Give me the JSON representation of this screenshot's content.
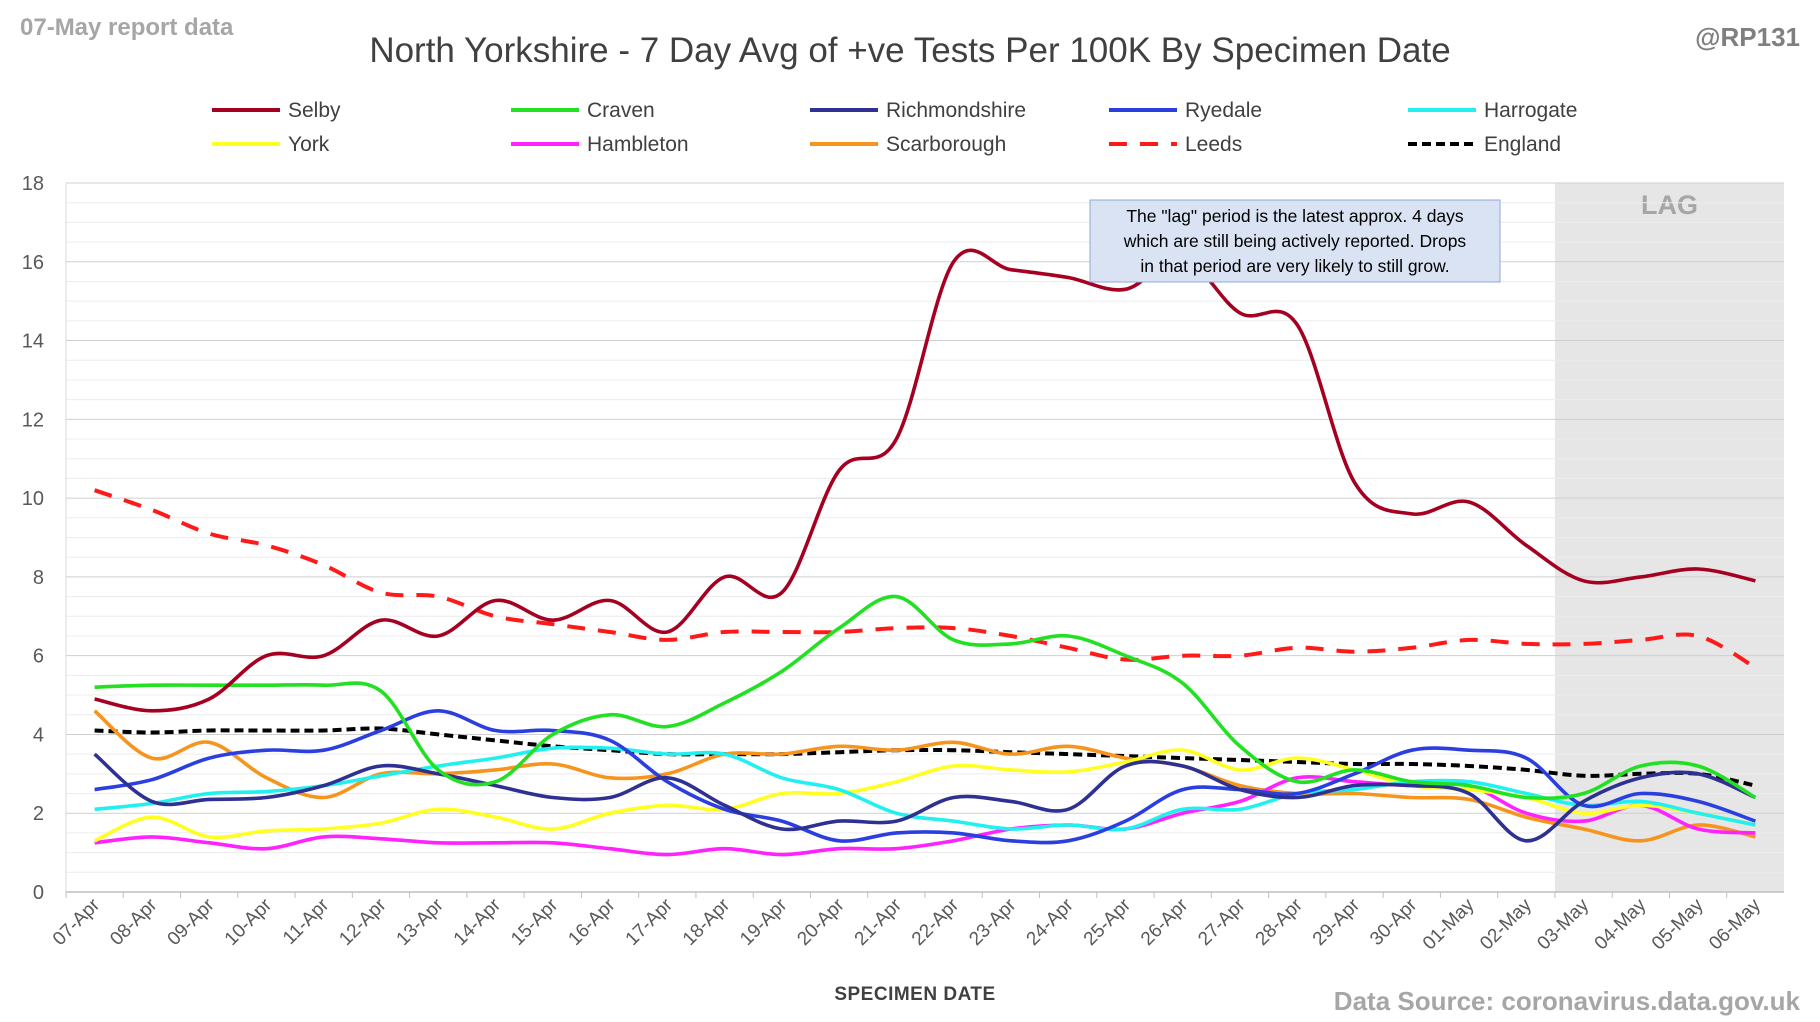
{
  "header": {
    "report_date": "07-May report data",
    "author": "@RP131",
    "source": "Data Source: coronavirus.data.gov.uk"
  },
  "chart_data": {
    "type": "line",
    "title": "North Yorkshire - 7 Day Avg of +ve Tests Per 100K By Specimen Date",
    "xlabel": "SPECIMEN DATE",
    "ylabel": "",
    "ylim": [
      0,
      18
    ],
    "yticks": [
      0,
      2,
      4,
      6,
      8,
      10,
      12,
      14,
      16,
      18
    ],
    "grid": "horizontal",
    "legend_position": "top",
    "x": [
      "07-Apr",
      "08-Apr",
      "09-Apr",
      "10-Apr",
      "11-Apr",
      "12-Apr",
      "13-Apr",
      "14-Apr",
      "15-Apr",
      "16-Apr",
      "17-Apr",
      "18-Apr",
      "19-Apr",
      "20-Apr",
      "21-Apr",
      "22-Apr",
      "23-Apr",
      "24-Apr",
      "25-Apr",
      "26-Apr",
      "27-Apr",
      "28-Apr",
      "29-Apr",
      "30-Apr",
      "01-May",
      "02-May",
      "03-May",
      "04-May",
      "05-May",
      "06-May"
    ],
    "lag_region": {
      "label": "LAG",
      "from": "03-May",
      "to": "06-May"
    },
    "annotation": {
      "lines": [
        "The \"lag\" period is the latest approx. 4 days",
        "which are still being actively reported.  Drops",
        "in that period are very likely to still grow."
      ]
    },
    "series": [
      {
        "name": "Selby",
        "color": "#a50021",
        "dash": false,
        "values": [
          4.9,
          4.6,
          4.9,
          6.0,
          6.0,
          6.9,
          6.5,
          7.4,
          6.9,
          7.4,
          6.6,
          8.0,
          7.6,
          10.7,
          11.5,
          16.0,
          15.8,
          15.6,
          15.3,
          16.1,
          14.7,
          14.4,
          10.4,
          9.6,
          9.9,
          8.8,
          7.9,
          8.0,
          8.2,
          7.9
        ]
      },
      {
        "name": "Craven",
        "color": "#22e022",
        "dash": false,
        "values": [
          5.2,
          5.25,
          5.25,
          5.25,
          5.25,
          5.1,
          3.1,
          2.8,
          4.0,
          4.5,
          4.2,
          4.8,
          5.6,
          6.7,
          7.5,
          6.4,
          6.3,
          6.5,
          6.0,
          5.3,
          3.7,
          2.8,
          3.1,
          2.8,
          2.7,
          2.4,
          2.5,
          3.2,
          3.2,
          2.4
        ]
      },
      {
        "name": "Richmondshire",
        "color": "#2e3192",
        "dash": false,
        "values": [
          3.5,
          2.3,
          2.35,
          2.4,
          2.7,
          3.2,
          3.0,
          2.7,
          2.4,
          2.4,
          2.9,
          2.2,
          1.6,
          1.8,
          1.8,
          2.4,
          2.3,
          2.1,
          3.2,
          3.2,
          2.6,
          2.4,
          2.7,
          2.7,
          2.5,
          1.3,
          2.3,
          2.9,
          3.0,
          2.4
        ]
      },
      {
        "name": "Ryedale",
        "color": "#2b3fe0",
        "dash": false,
        "values": [
          2.6,
          2.85,
          3.4,
          3.6,
          3.6,
          4.1,
          4.6,
          4.1,
          4.1,
          3.85,
          2.8,
          2.1,
          1.8,
          1.3,
          1.5,
          1.5,
          1.3,
          1.3,
          1.8,
          2.6,
          2.6,
          2.5,
          3.0,
          3.6,
          3.6,
          3.4,
          2.2,
          2.5,
          2.3,
          1.8
        ]
      },
      {
        "name": "Harrogate",
        "color": "#22f0f0",
        "dash": false,
        "values": [
          2.1,
          2.25,
          2.5,
          2.55,
          2.7,
          2.95,
          3.2,
          3.4,
          3.65,
          3.65,
          3.5,
          3.5,
          2.9,
          2.6,
          2.0,
          1.8,
          1.6,
          1.7,
          1.6,
          2.1,
          2.1,
          2.5,
          2.6,
          2.8,
          2.8,
          2.5,
          2.2,
          2.3,
          2.0,
          1.7
        ]
      },
      {
        "name": "York",
        "color": "#ffff22",
        "dash": false,
        "values": [
          1.3,
          1.9,
          1.4,
          1.55,
          1.6,
          1.75,
          2.1,
          1.9,
          1.6,
          2.0,
          2.2,
          2.1,
          2.5,
          2.5,
          2.8,
          3.2,
          3.1,
          3.05,
          3.3,
          3.6,
          3.1,
          3.4,
          3.1,
          2.7,
          2.6,
          2.4,
          2.0,
          2.2,
          2.0,
          1.7
        ]
      },
      {
        "name": "Hambleton",
        "color": "#ff22ff",
        "dash": false,
        "values": [
          1.25,
          1.4,
          1.25,
          1.1,
          1.4,
          1.35,
          1.25,
          1.25,
          1.25,
          1.1,
          0.95,
          1.1,
          0.95,
          1.1,
          1.1,
          1.3,
          1.6,
          1.7,
          1.6,
          2.0,
          2.3,
          2.9,
          2.8,
          2.7,
          2.7,
          2.0,
          1.8,
          2.2,
          1.6,
          1.5
        ]
      },
      {
        "name": "Scarborough",
        "color": "#f7941d",
        "dash": false,
        "values": [
          4.6,
          3.4,
          3.8,
          2.9,
          2.4,
          3.0,
          3.0,
          3.1,
          3.25,
          2.9,
          3.0,
          3.5,
          3.5,
          3.7,
          3.6,
          3.8,
          3.5,
          3.7,
          3.4,
          3.2,
          2.7,
          2.5,
          2.5,
          2.4,
          2.35,
          1.9,
          1.6,
          1.3,
          1.7,
          1.4
        ]
      },
      {
        "name": "Leeds",
        "color": "#ff1a1a",
        "dash": true,
        "values": [
          10.2,
          9.7,
          9.1,
          8.8,
          8.3,
          7.6,
          7.5,
          7.0,
          6.8,
          6.6,
          6.4,
          6.6,
          6.6,
          6.6,
          6.7,
          6.7,
          6.5,
          6.2,
          5.9,
          6.0,
          6.0,
          6.2,
          6.1,
          6.2,
          6.4,
          6.3,
          6.3,
          6.4,
          6.5,
          5.7
        ]
      },
      {
        "name": "England",
        "color": "#000000",
        "dash": true,
        "values": [
          4.1,
          4.05,
          4.1,
          4.1,
          4.1,
          4.15,
          4.0,
          3.85,
          3.7,
          3.6,
          3.5,
          3.5,
          3.5,
          3.55,
          3.6,
          3.6,
          3.55,
          3.5,
          3.45,
          3.4,
          3.35,
          3.3,
          3.25,
          3.25,
          3.2,
          3.1,
          2.95,
          3.0,
          3.0,
          2.7
        ]
      }
    ]
  }
}
